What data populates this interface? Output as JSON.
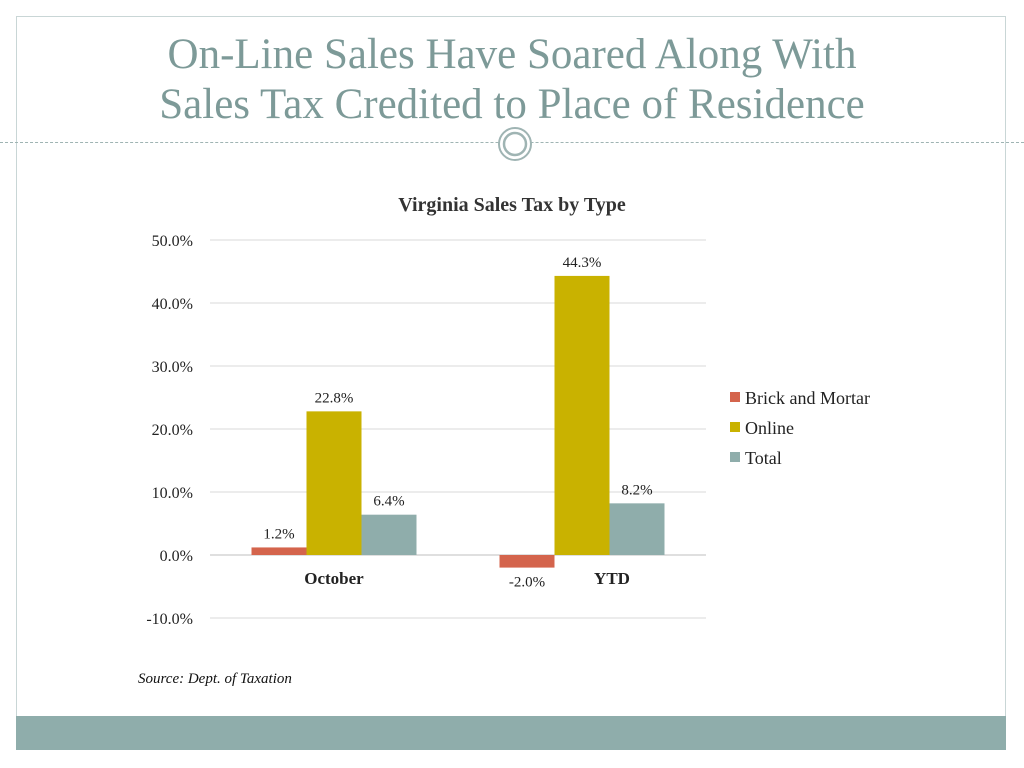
{
  "slide": {
    "title_line1": "On-Line Sales Have Soared Along With",
    "title_line2": "Sales Tax Credited to Place of Residence",
    "source": "Source: Dept. of Taxation",
    "colors": {
      "title": "#7d9a98",
      "footer_bar": "#8fadab"
    }
  },
  "chart_data": {
    "type": "bar",
    "title": "Virginia Sales Tax by Type",
    "xlabel": "",
    "ylabel": "",
    "categories": [
      "October",
      "YTD"
    ],
    "series": [
      {
        "name": "Brick and Mortar",
        "color": "#d4644c",
        "values": [
          1.2,
          -2.0
        ],
        "labels": [
          "1.2%",
          "-2.0%"
        ]
      },
      {
        "name": "Online",
        "color": "#c9b200",
        "values": [
          22.8,
          44.3
        ],
        "labels": [
          "22.8%",
          "44.3%"
        ]
      },
      {
        "name": "Total",
        "color": "#8fadab",
        "values": [
          6.4,
          8.2
        ],
        "labels": [
          "6.4%",
          "8.2%"
        ]
      }
    ],
    "ylim": [
      -10,
      50
    ],
    "yticks": [
      50,
      40,
      30,
      20,
      10,
      0,
      -10
    ],
    "ytick_labels": [
      "50.0%",
      "40.0%",
      "30.0%",
      "20.0%",
      "10.0%",
      "0.0%",
      "-10.0%"
    ],
    "grid": true,
    "legend": "right"
  }
}
